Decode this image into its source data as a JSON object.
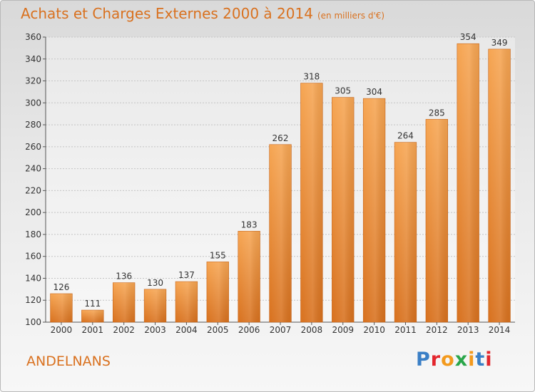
{
  "title": "Achats et Charges Externes 2000 à 2014",
  "unit": "(en milliers d'€)",
  "commune": "ANDELNANS",
  "logo": {
    "letters": [
      "P",
      "r",
      "o",
      "x",
      "i",
      "t",
      "i"
    ],
    "colors": [
      "#3a7fc6",
      "#e3262d",
      "#f39a1e",
      "#2aa64a",
      "#f39a1e",
      "#3a7fc6",
      "#e3262d"
    ]
  },
  "colors": {
    "accent": "#d9711f",
    "bar_top": "#f6a552",
    "bar_bottom": "#d8711e"
  },
  "chart_data": {
    "type": "bar",
    "title": "Achats et Charges Externes 2000 à 2014",
    "subtitle": "(en milliers d'€)",
    "categories": [
      "2000",
      "2001",
      "2002",
      "2003",
      "2004",
      "2005",
      "2006",
      "2007",
      "2008",
      "2009",
      "2010",
      "2011",
      "2012",
      "2013",
      "2014"
    ],
    "values": [
      126,
      111,
      136,
      130,
      137,
      155,
      183,
      262,
      318,
      305,
      304,
      264,
      285,
      354,
      349
    ],
    "ylim": [
      100,
      360
    ],
    "yticks": [
      100,
      120,
      140,
      160,
      180,
      200,
      220,
      240,
      260,
      280,
      300,
      320,
      340,
      360
    ],
    "grid": true,
    "legend": "none"
  }
}
